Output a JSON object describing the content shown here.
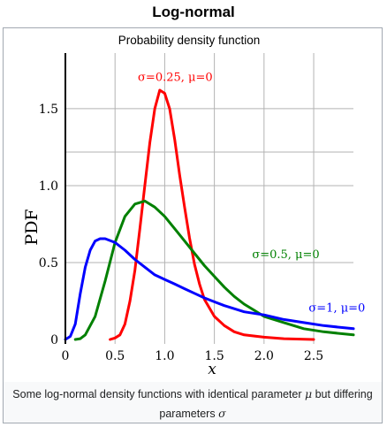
{
  "page": {
    "title": "Log-normal",
    "caption_before_mu": "Some log-normal density functions with identical parameter ",
    "caption_mu": "μ",
    "caption_middle": " but differing parameters ",
    "caption_sigma": "σ"
  },
  "colors": {
    "red": "#ff0000",
    "green": "#008000",
    "blue": "#0000ff",
    "grid": "#b3b3b3"
  },
  "chart_data": {
    "type": "line",
    "title": "Probability density function",
    "xlabel": "x",
    "ylabel": "PDF",
    "xlim": [
      0,
      2.9
    ],
    "ylim": [
      0,
      1.85
    ],
    "grid": true,
    "x_ticks": [
      0,
      0.5,
      1.0,
      1.5,
      2.0,
      2.5
    ],
    "x_tick_labels": [
      "0",
      "0.5",
      "1.0",
      "1.5",
      "2.0",
      "2.5"
    ],
    "y_ticks": [
      0,
      0.5,
      1.0,
      1.5
    ],
    "y_tick_labels": [
      "0",
      "0.5",
      "1.0",
      "1.5"
    ],
    "x_grid": [
      0.5,
      1.0,
      1.5,
      2.0,
      2.5
    ],
    "y_grid": [
      0.5,
      1.0,
      1.5
    ],
    "series": [
      {
        "name": "σ=0.25, μ=0",
        "color": "#ff0000",
        "label_x": 0.73,
        "label_y": 1.68,
        "points": [
          [
            0.45,
            0
          ],
          [
            0.5,
            0.01
          ],
          [
            0.55,
            0.03
          ],
          [
            0.6,
            0.1
          ],
          [
            0.65,
            0.25
          ],
          [
            0.7,
            0.45
          ],
          [
            0.75,
            0.72
          ],
          [
            0.8,
            1.0
          ],
          [
            0.85,
            1.28
          ],
          [
            0.9,
            1.5
          ],
          [
            0.95,
            1.62
          ],
          [
            1.0,
            1.6
          ],
          [
            1.05,
            1.5
          ],
          [
            1.1,
            1.3
          ],
          [
            1.15,
            1.07
          ],
          [
            1.2,
            0.86
          ],
          [
            1.25,
            0.66
          ],
          [
            1.3,
            0.49
          ],
          [
            1.35,
            0.36
          ],
          [
            1.4,
            0.26
          ],
          [
            1.5,
            0.15
          ],
          [
            1.6,
            0.09
          ],
          [
            1.7,
            0.05
          ],
          [
            1.8,
            0.03
          ],
          [
            2.0,
            0.015
          ],
          [
            2.2,
            0.005
          ],
          [
            2.5,
            0.0
          ]
        ]
      },
      {
        "name": "σ=0.5, μ=0",
        "color": "#008000",
        "label_x": 1.88,
        "label_y": 0.53,
        "points": [
          [
            0.1,
            0
          ],
          [
            0.15,
            0.005
          ],
          [
            0.2,
            0.03
          ],
          [
            0.3,
            0.15
          ],
          [
            0.4,
            0.38
          ],
          [
            0.5,
            0.63
          ],
          [
            0.6,
            0.8
          ],
          [
            0.7,
            0.88
          ],
          [
            0.8,
            0.9
          ],
          [
            0.9,
            0.86
          ],
          [
            1.0,
            0.8
          ],
          [
            1.1,
            0.72
          ],
          [
            1.2,
            0.64
          ],
          [
            1.3,
            0.56
          ],
          [
            1.4,
            0.48
          ],
          [
            1.5,
            0.41
          ],
          [
            1.6,
            0.34
          ],
          [
            1.7,
            0.28
          ],
          [
            1.8,
            0.23
          ],
          [
            1.9,
            0.19
          ],
          [
            2.0,
            0.15
          ],
          [
            2.2,
            0.11
          ],
          [
            2.4,
            0.07
          ],
          [
            2.6,
            0.05
          ],
          [
            2.9,
            0.03
          ]
        ]
      },
      {
        "name": "σ=1, μ=0",
        "color": "#0000ff",
        "label_x": 2.45,
        "label_y": 0.18,
        "points": [
          [
            0,
            0
          ],
          [
            0.05,
            0.02
          ],
          [
            0.1,
            0.1
          ],
          [
            0.15,
            0.3
          ],
          [
            0.2,
            0.47
          ],
          [
            0.25,
            0.58
          ],
          [
            0.3,
            0.64
          ],
          [
            0.35,
            0.655
          ],
          [
            0.4,
            0.655
          ],
          [
            0.5,
            0.63
          ],
          [
            0.6,
            0.58
          ],
          [
            0.7,
            0.52
          ],
          [
            0.8,
            0.47
          ],
          [
            0.9,
            0.42
          ],
          [
            1.0,
            0.39
          ],
          [
            1.1,
            0.36
          ],
          [
            1.2,
            0.33
          ],
          [
            1.3,
            0.3
          ],
          [
            1.4,
            0.27
          ],
          [
            1.5,
            0.245
          ],
          [
            1.6,
            0.22
          ],
          [
            1.8,
            0.18
          ],
          [
            2.0,
            0.16
          ],
          [
            2.2,
            0.13
          ],
          [
            2.4,
            0.11
          ],
          [
            2.6,
            0.09
          ],
          [
            2.9,
            0.07
          ]
        ]
      }
    ]
  }
}
